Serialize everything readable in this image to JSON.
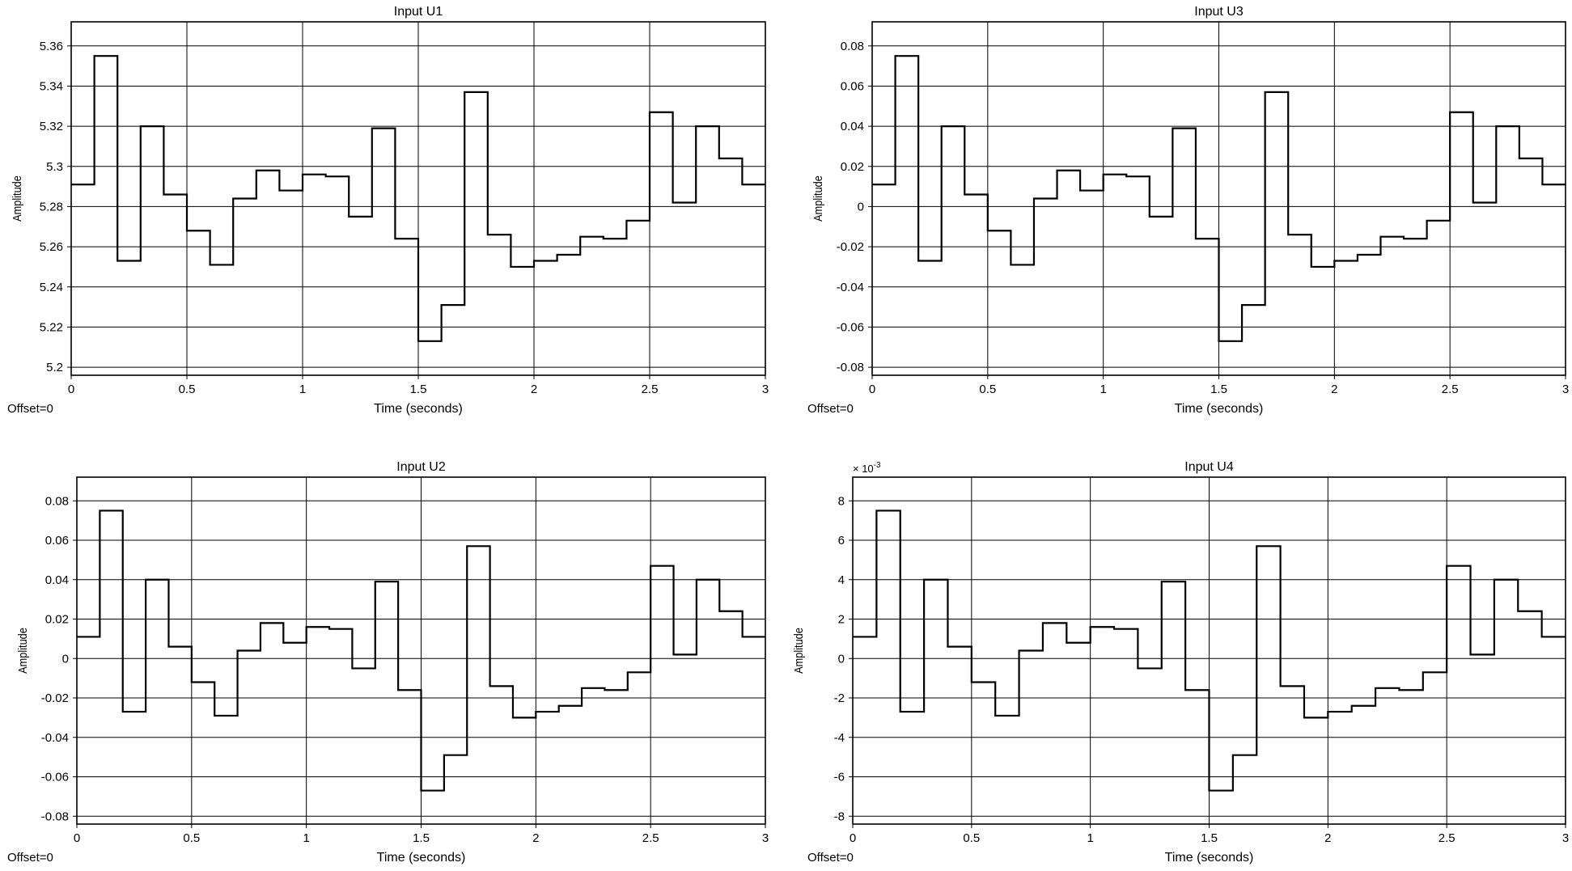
{
  "figure": {
    "offset_label": "Offset=0",
    "xlabel": "Time (seconds)",
    "ylabel": "Amplitude"
  },
  "chart_data": [
    {
      "type": "line",
      "step": true,
      "title": "Input U1",
      "xlabel": "Time (seconds)",
      "ylabel": "Amplitude",
      "xlim": [
        0,
        3
      ],
      "ylim": [
        5.196,
        5.372
      ],
      "grid": true,
      "x_ticks": [
        0,
        0.5,
        1,
        1.5,
        2,
        2.5,
        3
      ],
      "x_tick_labels": [
        "0",
        "0.5",
        "1",
        "1.5",
        "2",
        "2.5",
        "3"
      ],
      "y_ticks": [
        5.2,
        5.22,
        5.24,
        5.26,
        5.28,
        5.3,
        5.32,
        5.34,
        5.36
      ],
      "y_tick_labels": [
        "5.2",
        "5.22",
        "5.24",
        "5.26",
        "5.28",
        "5.3",
        "5.32",
        "5.34",
        "5.36"
      ],
      "series": [
        {
          "x": [
            0,
            0.1,
            0.2,
            0.3,
            0.4,
            0.5,
            0.6,
            0.7,
            0.8,
            0.9,
            1.0,
            1.1,
            1.2,
            1.3,
            1.4,
            1.5,
            1.6,
            1.7,
            1.8,
            1.9,
            2.0,
            2.1,
            2.2,
            2.3,
            2.4,
            2.5,
            2.6,
            2.7,
            2.8,
            2.9,
            3.0
          ],
          "y": [
            5.291,
            5.355,
            5.253,
            5.32,
            5.286,
            5.268,
            5.251,
            5.284,
            5.298,
            5.288,
            5.296,
            5.295,
            5.275,
            5.319,
            5.264,
            5.213,
            5.231,
            5.337,
            5.266,
            5.25,
            5.253,
            5.256,
            5.265,
            5.264,
            5.273,
            5.327,
            5.282,
            5.32,
            5.304,
            5.291,
            5.291
          ]
        }
      ]
    },
    {
      "type": "line",
      "step": true,
      "title": "Input U3",
      "xlabel": "Time (seconds)",
      "ylabel": "Amplitude",
      "xlim": [
        0,
        3
      ],
      "ylim": [
        -0.084,
        0.092
      ],
      "grid": true,
      "x_ticks": [
        0,
        0.5,
        1,
        1.5,
        2,
        2.5,
        3
      ],
      "x_tick_labels": [
        "0",
        "0.5",
        "1",
        "1.5",
        "2",
        "2.5",
        "3"
      ],
      "y_ticks": [
        -0.08,
        -0.06,
        -0.04,
        -0.02,
        0,
        0.02,
        0.04,
        0.06,
        0.08
      ],
      "y_tick_labels": [
        "-0.08",
        "-0.06",
        "-0.04",
        "-0.02",
        "0",
        "0.02",
        "0.04",
        "0.06",
        "0.08"
      ],
      "series": [
        {
          "x": [
            0,
            0.1,
            0.2,
            0.3,
            0.4,
            0.5,
            0.6,
            0.7,
            0.8,
            0.9,
            1.0,
            1.1,
            1.2,
            1.3,
            1.4,
            1.5,
            1.6,
            1.7,
            1.8,
            1.9,
            2.0,
            2.1,
            2.2,
            2.3,
            2.4,
            2.5,
            2.6,
            2.7,
            2.8,
            2.9,
            3.0
          ],
          "y": [
            0.011,
            0.075,
            -0.027,
            0.04,
            0.006,
            -0.012,
            -0.029,
            0.004,
            0.018,
            0.008,
            0.016,
            0.015,
            -0.005,
            0.039,
            -0.016,
            -0.067,
            -0.049,
            0.057,
            -0.014,
            -0.03,
            -0.027,
            -0.024,
            -0.015,
            -0.016,
            -0.007,
            0.047,
            0.002,
            0.04,
            0.024,
            0.011,
            0.011
          ]
        }
      ]
    },
    {
      "type": "line",
      "step": true,
      "title": "Input U2",
      "xlabel": "Time (seconds)",
      "ylabel": "Amplitude",
      "xlim": [
        0,
        3
      ],
      "ylim": [
        -0.084,
        0.092
      ],
      "grid": true,
      "x_ticks": [
        0,
        0.5,
        1,
        1.5,
        2,
        2.5,
        3
      ],
      "x_tick_labels": [
        "0",
        "0.5",
        "1",
        "1.5",
        "2",
        "2.5",
        "3"
      ],
      "y_ticks": [
        -0.08,
        -0.06,
        -0.04,
        -0.02,
        0,
        0.02,
        0.04,
        0.06,
        0.08
      ],
      "y_tick_labels": [
        "-0.08",
        "-0.06",
        "-0.04",
        "-0.02",
        "0",
        "0.02",
        "0.04",
        "0.06",
        "0.08"
      ],
      "series": [
        {
          "x": [
            0,
            0.1,
            0.2,
            0.3,
            0.4,
            0.5,
            0.6,
            0.7,
            0.8,
            0.9,
            1.0,
            1.1,
            1.2,
            1.3,
            1.4,
            1.5,
            1.6,
            1.7,
            1.8,
            1.9,
            2.0,
            2.1,
            2.2,
            2.3,
            2.4,
            2.5,
            2.6,
            2.7,
            2.8,
            2.9,
            3.0
          ],
          "y": [
            0.011,
            0.075,
            -0.027,
            0.04,
            0.006,
            -0.012,
            -0.029,
            0.004,
            0.018,
            0.008,
            0.016,
            0.015,
            -0.005,
            0.039,
            -0.016,
            -0.067,
            -0.049,
            0.057,
            -0.014,
            -0.03,
            -0.027,
            -0.024,
            -0.015,
            -0.016,
            -0.007,
            0.047,
            0.002,
            0.04,
            0.024,
            0.011,
            0.011
          ]
        }
      ]
    },
    {
      "type": "line",
      "step": true,
      "title": "Input U4",
      "exponent_label": "× 10",
      "exponent_power": "-3",
      "xlabel": "Time (seconds)",
      "ylabel": "Amplitude",
      "xlim": [
        0,
        3
      ],
      "ylim": [
        -8.4,
        9.2
      ],
      "grid": true,
      "x_ticks": [
        0,
        0.5,
        1,
        1.5,
        2,
        2.5,
        3
      ],
      "x_tick_labels": [
        "0",
        "0.5",
        "1",
        "1.5",
        "2",
        "2.5",
        "3"
      ],
      "y_ticks": [
        -8,
        -6,
        -4,
        -2,
        0,
        2,
        4,
        6,
        8
      ],
      "y_tick_labels": [
        "-8",
        "-6",
        "-4",
        "-2",
        "0",
        "2",
        "4",
        "6",
        "8"
      ],
      "series": [
        {
          "x": [
            0,
            0.1,
            0.2,
            0.3,
            0.4,
            0.5,
            0.6,
            0.7,
            0.8,
            0.9,
            1.0,
            1.1,
            1.2,
            1.3,
            1.4,
            1.5,
            1.6,
            1.7,
            1.8,
            1.9,
            2.0,
            2.1,
            2.2,
            2.3,
            2.4,
            2.5,
            2.6,
            2.7,
            2.8,
            2.9,
            3.0
          ],
          "y": [
            1.1,
            7.5,
            -2.7,
            4.0,
            0.6,
            -1.2,
            -2.9,
            0.4,
            1.8,
            0.8,
            1.6,
            1.5,
            -0.5,
            3.9,
            -1.6,
            -6.7,
            -4.9,
            5.7,
            -1.4,
            -3.0,
            -2.7,
            -2.4,
            -1.5,
            -1.6,
            -0.7,
            4.7,
            0.2,
            4.0,
            2.4,
            1.1,
            1.1
          ]
        }
      ]
    }
  ]
}
